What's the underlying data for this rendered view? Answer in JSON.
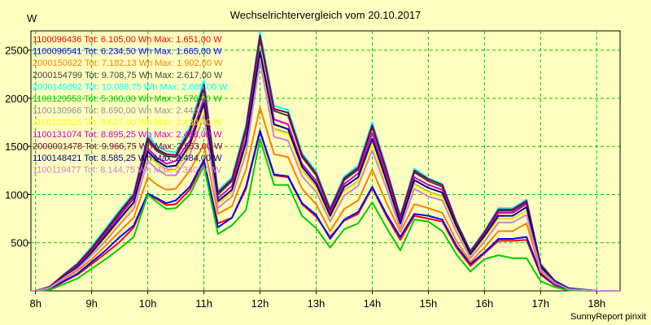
{
  "chart_data": {
    "type": "line",
    "title": "Wechselrichtervergleich vom 20.10.2017",
    "ylabel": "W",
    "credit": "SunnyReport pinxit",
    "xlim": [
      7.917,
      18.417
    ],
    "ylim": [
      0,
      2700
    ],
    "grid": true,
    "legend_position": "top-left",
    "x_ticks": [
      {
        "v": 8,
        "label": "8h"
      },
      {
        "v": 9,
        "label": "9h"
      },
      {
        "v": 10,
        "label": "10h"
      },
      {
        "v": 11,
        "label": "11h"
      },
      {
        "v": 12,
        "label": "12h"
      },
      {
        "v": 13,
        "label": "13h"
      },
      {
        "v": 14,
        "label": "14h"
      },
      {
        "v": 15,
        "label": "15h"
      },
      {
        "v": 16,
        "label": "16h"
      },
      {
        "v": 17,
        "label": "17h"
      },
      {
        "v": 18,
        "label": "18h"
      }
    ],
    "y_ticks": [
      {
        "v": 500,
        "label": "500"
      },
      {
        "v": 1000,
        "label": "1000"
      },
      {
        "v": 1500,
        "label": "1500"
      },
      {
        "v": 2000,
        "label": "2000"
      },
      {
        "v": 2500,
        "label": "2500"
      }
    ],
    "x": [
      7.917,
      8.0,
      8.25,
      8.5,
      8.75,
      9.0,
      9.25,
      9.5,
      9.75,
      10.0,
      10.167,
      10.333,
      10.5,
      10.75,
      11.0,
      11.25,
      11.5,
      11.75,
      12.0,
      12.25,
      12.5,
      12.75,
      13.0,
      13.25,
      13.5,
      13.75,
      14.0,
      14.25,
      14.5,
      14.75,
      15.0,
      15.25,
      15.5,
      15.75,
      16.0,
      16.25,
      16.5,
      16.75,
      17.0,
      17.25,
      17.5,
      18.0,
      18.417
    ],
    "series": [
      {
        "name": "1100096436",
        "legend": "1100096436 Tot: 6.105,00 Wh Max: 1.651,00 W",
        "color": "#ff0000",
        "values": [
          0,
          0,
          20,
          95,
          170,
          280,
          390,
          510,
          660,
          1000,
          950,
          890,
          900,
          1050,
          1340,
          700,
          760,
          1060,
          1651,
          1200,
          1180,
          900,
          770,
          560,
          730,
          800,
          1070,
          780,
          530,
          780,
          750,
          720,
          450,
          260,
          390,
          520,
          520,
          530,
          170,
          60,
          10,
          0,
          0
        ]
      },
      {
        "name": "1100096541",
        "legend": "1100096541 Tot: 6.234,50 Wh Max: 1.665,00 W",
        "color": "#0000ff",
        "values": [
          0,
          0,
          25,
          100,
          180,
          300,
          420,
          560,
          680,
          1010,
          960,
          910,
          940,
          1080,
          1360,
          660,
          760,
          1080,
          1665,
          1210,
          1190,
          910,
          790,
          540,
          740,
          820,
          1080,
          800,
          560,
          800,
          780,
          740,
          470,
          280,
          400,
          540,
          540,
          560,
          180,
          70,
          15,
          0,
          0
        ]
      },
      {
        "name": "2000150622",
        "legend": "2000150622 Tot: 7.182,13 Wh Max: 1.902,00 W",
        "color": "#ff8000",
        "values": [
          0,
          0,
          30,
          120,
          210,
          330,
          470,
          620,
          760,
          1180,
          1100,
          1050,
          1060,
          1250,
          1520,
          800,
          880,
          1260,
          1902,
          1420,
          1390,
          1060,
          900,
          620,
          850,
          940,
          1260,
          920,
          610,
          900,
          860,
          810,
          520,
          300,
          450,
          620,
          620,
          700,
          200,
          80,
          20,
          0,
          0
        ]
      },
      {
        "name": "2000154799",
        "legend": "2000154799 Tot: 9.708,75 Wh Max: 2.617,00 W",
        "color": "#404040",
        "values": [
          0,
          0,
          40,
          160,
          270,
          430,
          610,
          800,
          980,
          1560,
          1450,
          1400,
          1390,
          1640,
          2100,
          1000,
          1140,
          1660,
          2617,
          1870,
          1820,
          1390,
          1200,
          830,
          1150,
          1260,
          1700,
          1240,
          750,
          1230,
          1140,
          1080,
          700,
          400,
          600,
          830,
          830,
          920,
          270,
          100,
          25,
          0,
          0
        ]
      },
      {
        "name": "2000149892",
        "legend": "2000149892 Tot: 10.088,75 Wh Max: 2.685,00 W",
        "color": "#00ffff",
        "values": [
          0,
          0,
          45,
          170,
          290,
          460,
          650,
          840,
          1020,
          1620,
          1500,
          1450,
          1440,
          1700,
          2180,
          1040,
          1180,
          1720,
          2685,
          1920,
          1880,
          1430,
          1240,
          860,
          1190,
          1300,
          1750,
          1280,
          780,
          1270,
          1170,
          1110,
          720,
          420,
          620,
          860,
          860,
          950,
          280,
          110,
          30,
          0,
          0
        ]
      },
      {
        "name": "1100129553",
        "legend": "1100129553 Tot: 5.360,00 Wh Max: 1.576,00 W",
        "color": "#00cc00",
        "values": [
          0,
          0,
          10,
          70,
          130,
          230,
          330,
          440,
          560,
          1000,
          920,
          850,
          860,
          1000,
          1300,
          590,
          680,
          840,
          1576,
          1100,
          1100,
          780,
          650,
          450,
          640,
          700,
          920,
          660,
          420,
          740,
          720,
          620,
          380,
          200,
          330,
          370,
          340,
          340,
          100,
          40,
          5,
          0,
          0
        ]
      },
      {
        "name": "1100130966",
        "legend": "1100130966 Tot: 8.690,00 Wh Max: 2.443,",
        "color": "#909090",
        "values": [
          0,
          0,
          35,
          140,
          240,
          390,
          550,
          720,
          880,
          1420,
          1320,
          1260,
          1260,
          1480,
          1900,
          900,
          1020,
          1500,
          2443,
          1680,
          1640,
          1250,
          1080,
          750,
          1040,
          1140,
          1530,
          1120,
          680,
          1110,
          1030,
          980,
          640,
          360,
          540,
          750,
          750,
          830,
          240,
          90,
          20,
          0,
          0
        ]
      },
      {
        "name": "1100131026",
        "legend": "1100131026 Tot: 8.627,00 Wh Max: 2.430,00 W",
        "color": "#ffff00",
        "values": [
          0,
          0,
          35,
          140,
          240,
          385,
          545,
          715,
          875,
          1410,
          1310,
          1250,
          1250,
          1470,
          1890,
          895,
          1015,
          1490,
          2430,
          1670,
          1630,
          1240,
          1070,
          745,
          1030,
          1130,
          1520,
          1110,
          675,
          1100,
          1020,
          970,
          635,
          355,
          535,
          745,
          745,
          825,
          235,
          90,
          20,
          0,
          0
        ]
      },
      {
        "name": "1100131074",
        "legend": "1100131074 Tot: 8.895,25 Wh Max: 2.488,00 W",
        "color": "#cc00cc",
        "values": [
          0,
          0,
          38,
          150,
          255,
          410,
          590,
          780,
          960,
          1480,
          1380,
          1320,
          1350,
          1560,
          2000,
          960,
          1090,
          1580,
          2488,
          1780,
          1730,
          1320,
          1140,
          800,
          1110,
          1220,
          1640,
          1190,
          720,
          1180,
          1100,
          1050,
          690,
          390,
          590,
          810,
          810,
          900,
          260,
          100,
          25,
          0,
          0
        ]
      },
      {
        "name": "2000001478",
        "legend": "2000001478 Tot: 9.966,75 Wh Max: 2.653,00 W",
        "color": "#800040",
        "values": [
          0,
          0,
          42,
          165,
          280,
          445,
          630,
          820,
          1000,
          1590,
          1470,
          1420,
          1410,
          1670,
          2140,
          1020,
          1160,
          1690,
          2653,
          1890,
          1850,
          1410,
          1220,
          845,
          1170,
          1280,
          1720,
          1260,
          765,
          1250,
          1160,
          1100,
          710,
          410,
          610,
          845,
          845,
          935,
          275,
          105,
          28,
          0,
          0
        ]
      },
      {
        "name": "1100148421",
        "legend": "1100148421 Tot: 8.585,25 Wh Max: 2.484,00 W",
        "color": "#000080",
        "values": [
          0,
          0,
          36,
          145,
          245,
          400,
          570,
          750,
          920,
          1450,
          1350,
          1290,
          1300,
          1520,
          1950,
          930,
          1050,
          1540,
          2484,
          1730,
          1680,
          1290,
          1110,
          780,
          1080,
          1180,
          1580,
          1150,
          700,
          1150,
          1070,
          1020,
          670,
          380,
          570,
          780,
          780,
          870,
          250,
          95,
          22,
          0,
          0
        ]
      },
      {
        "name": "1100119477",
        "legend": "1100119477 Tot: 8.144,75 Wh Max: 2.380,00 W",
        "color": "#d080d0",
        "values": [
          0,
          0,
          33,
          135,
          230,
          370,
          520,
          690,
          850,
          1350,
          1260,
          1200,
          1200,
          1420,
          1820,
          860,
          980,
          1430,
          2380,
          1600,
          1560,
          1190,
          1030,
          720,
          990,
          1090,
          1460,
          1070,
          650,
          1060,
          980,
          940,
          610,
          340,
          510,
          710,
          710,
          790,
          225,
          85,
          18,
          0,
          0
        ]
      }
    ]
  }
}
